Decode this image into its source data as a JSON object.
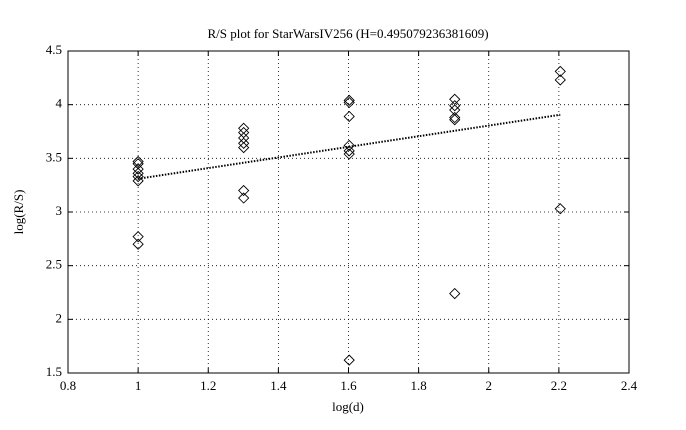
{
  "chart_data": {
    "type": "scatter",
    "title": "R/S plot for StarWarsIV256 (H=0.495079236381609)",
    "x_label": "log(d)",
    "y_label": "log(R/S)",
    "x": [
      1,
      1,
      1,
      1,
      1,
      1,
      1,
      1,
      1.301,
      1.301,
      1.301,
      1.301,
      1.301,
      1.301,
      1.301,
      1.602,
      1.602,
      1.602,
      1.602,
      1.602,
      1.602,
      1.602,
      1.903,
      1.903,
      1.903,
      1.903,
      1.903,
      1.903,
      2.204,
      2.204,
      2.204
    ],
    "values": [
      3.47,
      3.45,
      3.4,
      3.36,
      3.33,
      3.29,
      2.77,
      2.7,
      3.78,
      3.74,
      3.69,
      3.64,
      3.6,
      3.2,
      3.13,
      4.04,
      4.02,
      3.89,
      3.62,
      3.57,
      3.54,
      1.62,
      4.05,
      3.99,
      3.95,
      3.88,
      3.86,
      2.24,
      4.31,
      4.23,
      3.03
    ],
    "color": "#000000",
    "fit": {
      "x": [
        1,
        2.204
      ],
      "values": [
        3.31,
        3.906
      ],
      "color": "#000000"
    },
    "xlim": [
      0.8,
      2.4
    ],
    "xticks": [
      0.8,
      1,
      1.2,
      1.4,
      1.6,
      1.8,
      2,
      2.2,
      2.4
    ],
    "ylim": [
      1.5,
      4.5
    ],
    "yticks": [
      1.5,
      2,
      2.5,
      3,
      3.5,
      4,
      4.5
    ],
    "grid": true
  }
}
